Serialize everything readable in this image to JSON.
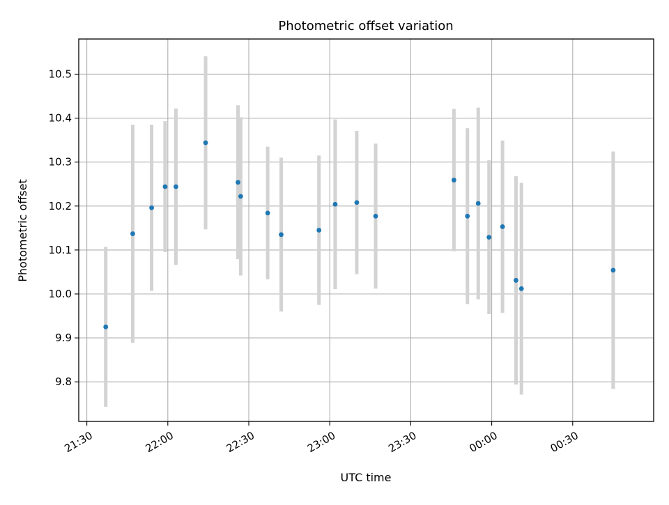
{
  "chart_data": {
    "type": "scatter",
    "title": "Photometric offset variation",
    "xlabel": "UTC time",
    "ylabel": "Photometric offset",
    "x_tick_labels": [
      "21:30",
      "22:00",
      "22:30",
      "23:00",
      "23:30",
      "00:00",
      "00:30"
    ],
    "y_tick_labels": [
      "9.8",
      "9.9",
      "10.0",
      "10.1",
      "10.2",
      "10.3",
      "10.4",
      "10.5"
    ],
    "xlim": [
      "21:27",
      "01:00"
    ],
    "ylim": [
      9.71,
      10.58
    ],
    "grid": true,
    "colors": {
      "marker": "#1f77b4",
      "errorbar": "#d3d3d3",
      "grid": "#b0b0b0"
    },
    "series": [
      {
        "points": [
          {
            "x": "21:37",
            "y": 9.925,
            "ylow": 9.743,
            "yhigh": 10.107
          },
          {
            "x": "21:47",
            "y": 10.137,
            "ylow": 9.889,
            "yhigh": 10.385
          },
          {
            "x": "21:54",
            "y": 10.196,
            "ylow": 10.007,
            "yhigh": 10.385
          },
          {
            "x": "21:59",
            "y": 10.244,
            "ylow": 10.095,
            "yhigh": 10.393
          },
          {
            "x": "22:03",
            "y": 10.244,
            "ylow": 10.066,
            "yhigh": 10.422
          },
          {
            "x": "22:14",
            "y": 10.344,
            "ylow": 10.147,
            "yhigh": 10.541
          },
          {
            "x": "22:26",
            "y": 10.254,
            "ylow": 10.079,
            "yhigh": 10.429
          },
          {
            "x": "22:27",
            "y": 10.222,
            "ylow": 10.042,
            "yhigh": 10.402
          },
          {
            "x": "22:37",
            "y": 10.184,
            "ylow": 10.033,
            "yhigh": 10.335
          },
          {
            "x": "22:42",
            "y": 10.135,
            "ylow": 9.96,
            "yhigh": 10.31
          },
          {
            "x": "22:56",
            "y": 10.145,
            "ylow": 9.975,
            "yhigh": 10.315
          },
          {
            "x": "23:02",
            "y": 10.204,
            "ylow": 10.011,
            "yhigh": 10.397
          },
          {
            "x": "23:10",
            "y": 10.208,
            "ylow": 10.045,
            "yhigh": 10.371
          },
          {
            "x": "23:17",
            "y": 10.177,
            "ylow": 10.012,
            "yhigh": 10.342
          },
          {
            "x": "23:46",
            "y": 10.259,
            "ylow": 10.097,
            "yhigh": 10.421
          },
          {
            "x": "23:51",
            "y": 10.177,
            "ylow": 9.977,
            "yhigh": 10.377
          },
          {
            "x": "23:55",
            "y": 10.206,
            "ylow": 9.988,
            "yhigh": 10.424
          },
          {
            "x": "23:59",
            "y": 10.129,
            "ylow": 9.954,
            "yhigh": 10.304
          },
          {
            "x": "00:04",
            "y": 10.153,
            "ylow": 9.957,
            "yhigh": 10.349
          },
          {
            "x": "00:09",
            "y": 10.031,
            "ylow": 9.794,
            "yhigh": 10.268
          },
          {
            "x": "00:11",
            "y": 10.012,
            "ylow": 9.771,
            "yhigh": 10.253
          },
          {
            "x": "00:45",
            "y": 10.054,
            "ylow": 9.784,
            "yhigh": 10.324
          }
        ]
      }
    ]
  }
}
